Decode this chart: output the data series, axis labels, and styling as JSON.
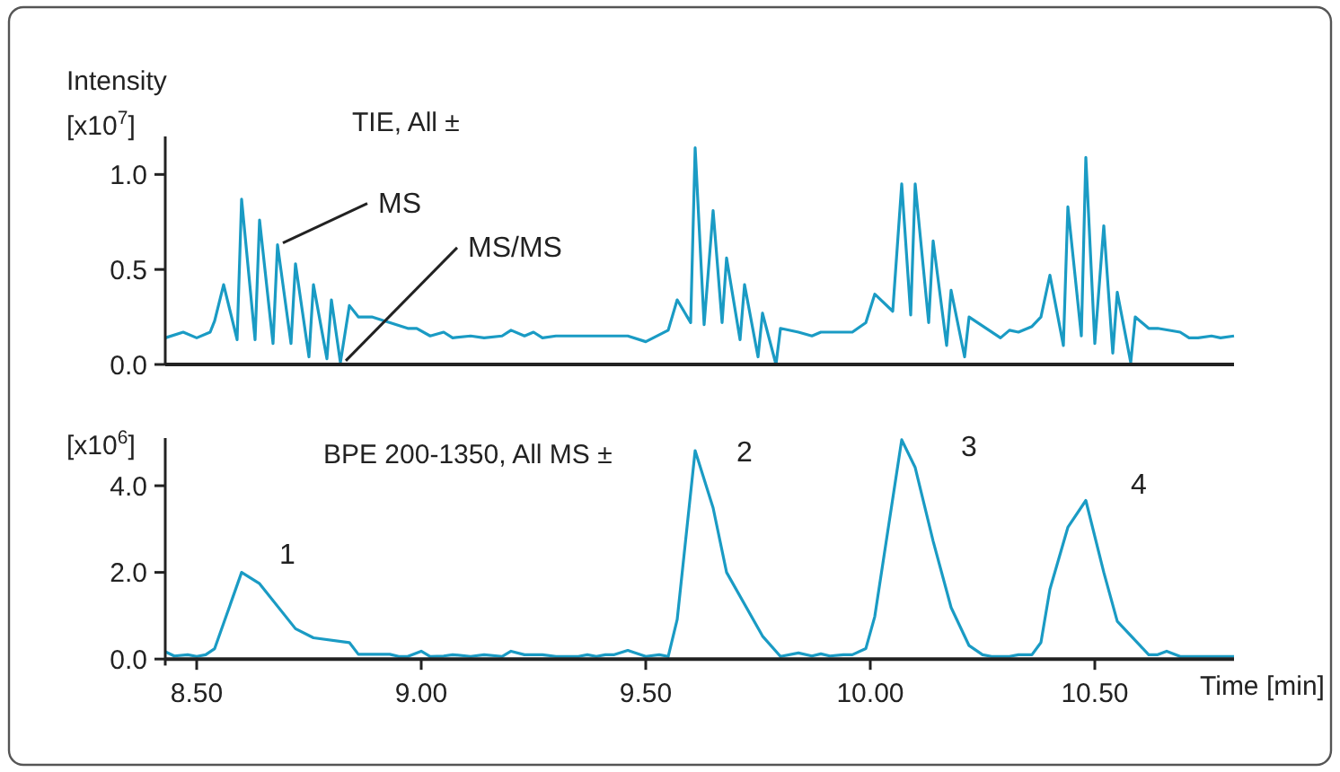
{
  "chart_data": [
    {
      "type": "line",
      "title": "TIE, All ±",
      "ylabel": "Intensity [x10$^{7}$]",
      "xlim": [
        8.43,
        10.81
      ],
      "ylim": [
        0,
        1.2
      ],
      "yticks": [
        {
          "value": 0,
          "label": "0.0"
        },
        {
          "value": 0.5,
          "label": "0.5"
        },
        {
          "value": 1,
          "label": "1.0"
        }
      ],
      "tick_labels": "y",
      "grid": false,
      "annotations": [
        {
          "text": "MS",
          "x": 8.68,
          "y": 0.63
        },
        {
          "text": "MS/MS",
          "x": 8.82,
          "y": 0.01
        }
      ],
      "series": [
        {
          "color": "#1a9bc4",
          "x": [
            8.43,
            8.47,
            8.5,
            8.53,
            8.54,
            8.56,
            8.59,
            8.6,
            8.63,
            8.64,
            8.67,
            8.68,
            8.71,
            8.72,
            8.75,
            8.76,
            8.79,
            8.8,
            8.82,
            8.84,
            8.86,
            8.89,
            8.97,
            8.99,
            9.02,
            9.05,
            9.07,
            9.11,
            9.14,
            9.18,
            9.2,
            9.23,
            9.25,
            9.27,
            9.3,
            9.46,
            9.5,
            9.55,
            9.57,
            9.6,
            9.61,
            9.63,
            9.65,
            9.67,
            9.68,
            9.71,
            9.72,
            9.75,
            9.76,
            9.79,
            9.8,
            9.84,
            9.87,
            9.89,
            9.96,
            9.99,
            10.01,
            10.05,
            10.07,
            10.09,
            10.1,
            10.13,
            10.14,
            10.17,
            10.18,
            10.21,
            10.22,
            10.29,
            10.31,
            10.33,
            10.36,
            10.38,
            10.4,
            10.43,
            10.44,
            10.47,
            10.48,
            10.5,
            10.52,
            10.54,
            10.55,
            10.58,
            10.59,
            10.62,
            10.64,
            10.69,
            10.71,
            10.73,
            10.76,
            10.78,
            10.81
          ],
          "values": [
            0.14,
            0.17,
            0.14,
            0.17,
            0.23,
            0.42,
            0.13,
            0.87,
            0.13,
            0.76,
            0.11,
            0.63,
            0.11,
            0.53,
            0.04,
            0.42,
            0.03,
            0.34,
            0.01,
            0.31,
            0.25,
            0.25,
            0.19,
            0.19,
            0.15,
            0.17,
            0.14,
            0.15,
            0.14,
            0.15,
            0.18,
            0.15,
            0.17,
            0.14,
            0.15,
            0.15,
            0.12,
            0.18,
            0.34,
            0.22,
            1.14,
            0.21,
            0.81,
            0.22,
            0.56,
            0.13,
            0.42,
            0.04,
            0.27,
            0.0,
            0.19,
            0.17,
            0.15,
            0.17,
            0.17,
            0.22,
            0.37,
            0.28,
            0.95,
            0.26,
            0.95,
            0.22,
            0.65,
            0.1,
            0.39,
            0.04,
            0.25,
            0.14,
            0.18,
            0.17,
            0.2,
            0.25,
            0.47,
            0.1,
            0.83,
            0.15,
            1.09,
            0.11,
            0.73,
            0.06,
            0.38,
            0.01,
            0.25,
            0.19,
            0.19,
            0.17,
            0.14,
            0.14,
            0.15,
            0.14,
            0.15
          ]
        }
      ]
    },
    {
      "type": "line",
      "title": "BPE 200-1350, All MS ±",
      "ylabel": "[x10$^{6}$]",
      "xlabel": "Time [min]",
      "xlim": [
        8.43,
        10.81
      ],
      "ylim": [
        -0.15,
        5.1
      ],
      "xticks": [
        {
          "value": 8.5,
          "label": "8.50"
        },
        {
          "value": 9,
          "label": "9.00"
        },
        {
          "value": 9.5,
          "label": "9.50"
        },
        {
          "value": 10,
          "label": "10.00"
        },
        {
          "value": 10.5,
          "label": "10.50"
        }
      ],
      "yticks": [
        {
          "value": 0,
          "label": "0.0"
        },
        {
          "value": 2,
          "label": "2.0"
        },
        {
          "value": 4,
          "label": "4.0"
        }
      ],
      "grid": false,
      "annotations": [
        {
          "text": "1",
          "x": 8.6,
          "y": 2.0
        },
        {
          "text": "2",
          "x": 9.61,
          "y": 4.81
        },
        {
          "text": "3",
          "x": 10.07,
          "y": 5.06
        },
        {
          "text": "4",
          "x": 10.48,
          "y": 3.66
        }
      ],
      "series": [
        {
          "color": "#1a9bc4",
          "x": [
            8.43,
            8.45,
            8.48,
            8.5,
            8.52,
            8.54,
            8.6,
            8.64,
            8.72,
            8.76,
            8.84,
            8.86,
            8.93,
            8.95,
            8.97,
            9.0,
            9.02,
            9.05,
            9.07,
            9.11,
            9.14,
            9.18,
            9.2,
            9.23,
            9.27,
            9.3,
            9.35,
            9.37,
            9.39,
            9.41,
            9.43,
            9.46,
            9.5,
            9.53,
            9.55,
            9.57,
            9.61,
            9.65,
            9.68,
            9.76,
            9.8,
            9.84,
            9.87,
            9.89,
            9.91,
            9.94,
            9.96,
            9.99,
            10.01,
            10.07,
            10.1,
            10.14,
            10.18,
            10.22,
            10.25,
            10.27,
            10.31,
            10.33,
            10.36,
            10.38,
            10.4,
            10.44,
            10.48,
            10.52,
            10.55,
            10.62,
            10.64,
            10.66,
            10.69,
            10.81
          ],
          "values": [
            0.17,
            0.07,
            0.1,
            0.06,
            0.1,
            0.24,
            2.0,
            1.74,
            0.7,
            0.49,
            0.38,
            0.11,
            0.11,
            0.06,
            0.06,
            0.18,
            0.06,
            0.07,
            0.1,
            0.06,
            0.1,
            0.06,
            0.18,
            0.1,
            0.1,
            0.06,
            0.06,
            0.1,
            0.06,
            0.1,
            0.1,
            0.2,
            0.06,
            0.1,
            0.06,
            0.91,
            4.81,
            3.49,
            2.0,
            0.53,
            0.06,
            0.14,
            0.07,
            0.12,
            0.07,
            0.1,
            0.1,
            0.24,
            0.98,
            5.06,
            4.42,
            2.72,
            1.19,
            0.31,
            0.1,
            0.06,
            0.06,
            0.1,
            0.1,
            0.38,
            1.61,
            3.04,
            3.66,
            2.0,
            0.87,
            0.1,
            0.1,
            0.18,
            0.06,
            0.06
          ]
        }
      ]
    }
  ]
}
